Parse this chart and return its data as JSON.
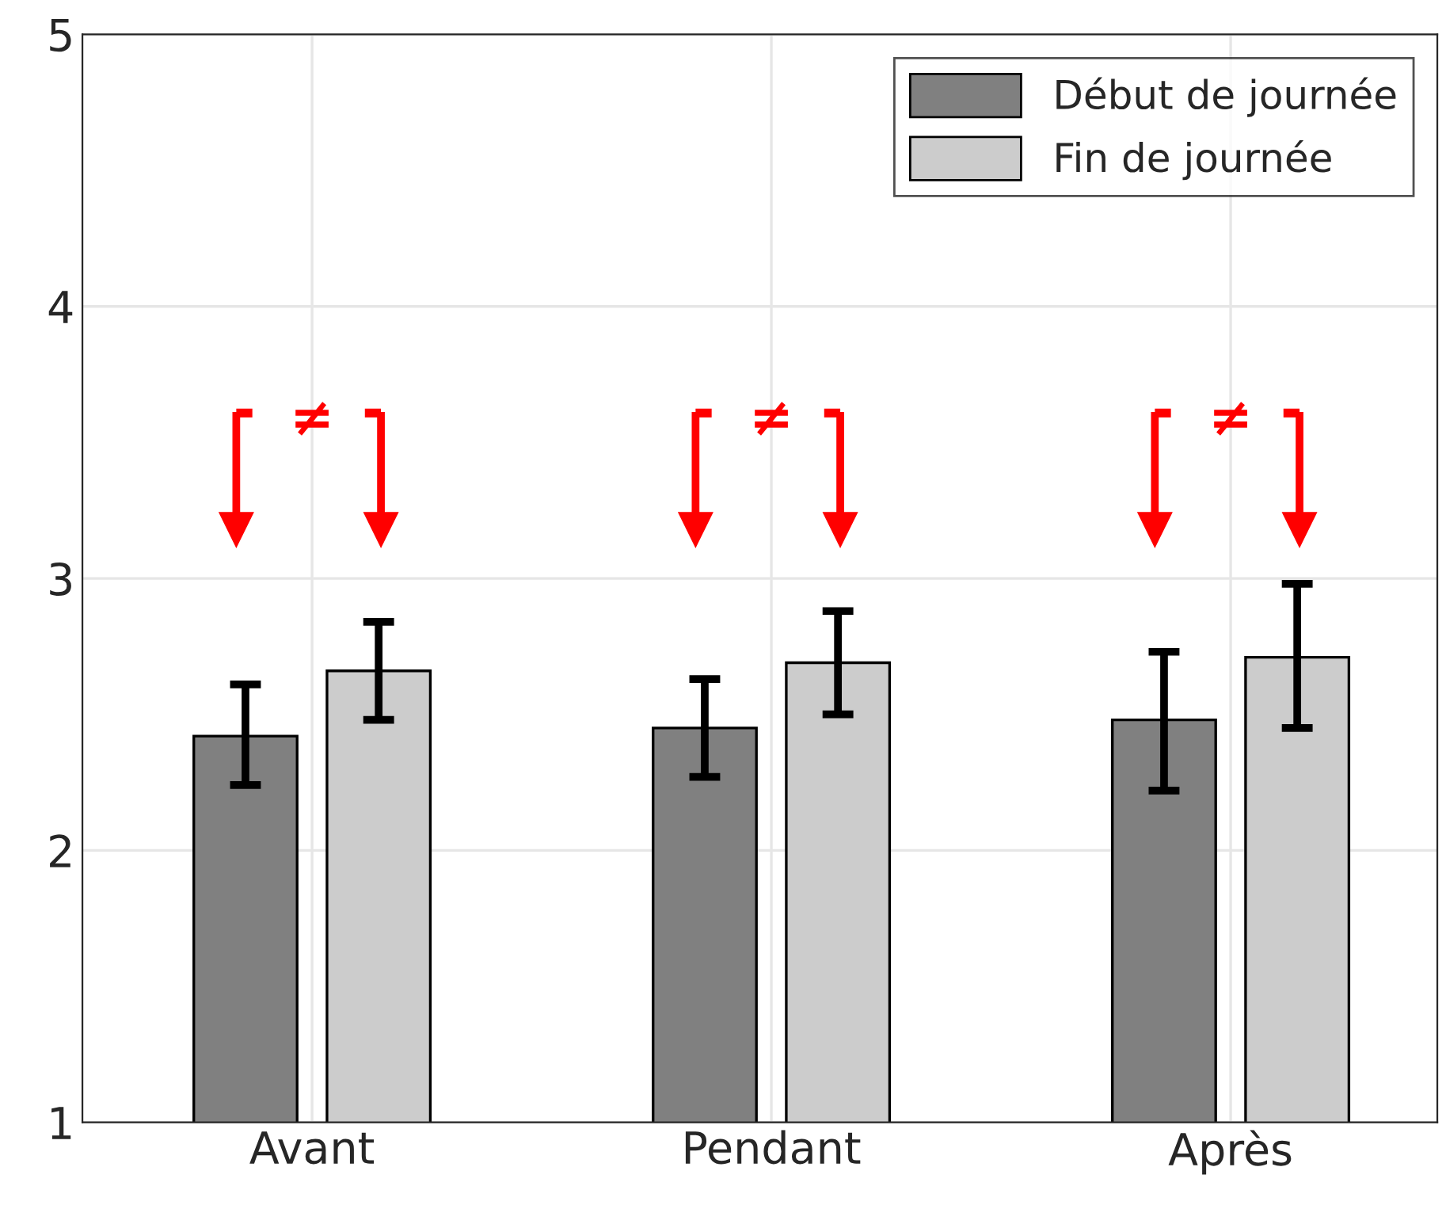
{
  "chart_data": {
    "type": "bar",
    "categories": [
      "Avant",
      "Pendant",
      "Après"
    ],
    "series": [
      {
        "name": "Début de journée",
        "color": "#808080",
        "values": [
          2.42,
          2.45,
          2.48
        ],
        "errors": [
          [
            2.24,
            2.61
          ],
          [
            2.27,
            2.63
          ],
          [
            2.22,
            2.73
          ]
        ]
      },
      {
        "name": "Fin de journée",
        "color": "#cccccc",
        "values": [
          2.66,
          2.69,
          2.71
        ],
        "errors": [
          [
            2.48,
            2.84
          ],
          [
            2.5,
            2.88
          ],
          [
            2.45,
            2.98
          ]
        ]
      }
    ],
    "ylim": [
      1,
      5
    ],
    "yticks": [
      1,
      2,
      3,
      4,
      5
    ],
    "grid": true,
    "legend": "top right",
    "annotations": [
      "≠",
      "≠",
      "≠"
    ]
  }
}
